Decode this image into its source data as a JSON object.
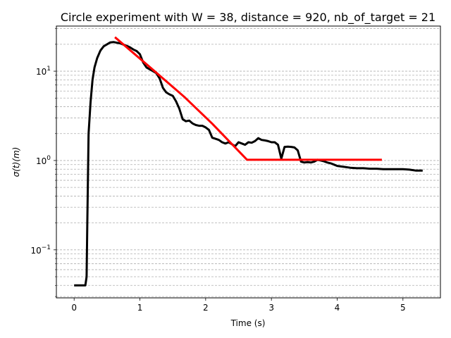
{
  "chart_data": {
    "type": "line",
    "title": "Circle experiment with W = 38, distance = 920, nb_of_target = 21",
    "xlabel": "Time (s)",
    "ylabel": "σ(t)(m)",
    "xlim": [
      -0.27,
      5.57
    ],
    "ylim": [
      0.029,
      32
    ],
    "yscale": "log",
    "grid": "y-major-and-minor-dashed",
    "x_ticks": [
      0,
      1,
      2,
      3,
      4,
      5
    ],
    "x_tick_labels": [
      "0",
      "1",
      "2",
      "3",
      "4",
      "5"
    ],
    "y_ticks": [
      0.1,
      1,
      10
    ],
    "y_tick_labels": [
      {
        "base": "10",
        "exp": "−1"
      },
      {
        "base": "10",
        "exp": "0"
      },
      {
        "base": "10",
        "exp": "1"
      }
    ],
    "series": [
      {
        "color": "#000000",
        "x": [
          0.0,
          0.17,
          0.19,
          0.2,
          0.22,
          0.25,
          0.28,
          0.31,
          0.35,
          0.4,
          0.45,
          0.5,
          0.55,
          0.6,
          0.65,
          0.7,
          0.75,
          0.8,
          0.85,
          0.9,
          0.95,
          1.0,
          1.05,
          1.1,
          1.15,
          1.2,
          1.25,
          1.3,
          1.35,
          1.4,
          1.45,
          1.5,
          1.55,
          1.6,
          1.65,
          1.7,
          1.75,
          1.8,
          1.85,
          1.9,
          1.95,
          2.0,
          2.05,
          2.1,
          2.15,
          2.2,
          2.25,
          2.3,
          2.35,
          2.4,
          2.45,
          2.5,
          2.55,
          2.6,
          2.65,
          2.7,
          2.75,
          2.8,
          2.85,
          2.9,
          2.95,
          3.0,
          3.05,
          3.1,
          3.15,
          3.2,
          3.25,
          3.3,
          3.35,
          3.4,
          3.45,
          3.5,
          3.55,
          3.6,
          3.65,
          3.7,
          3.75,
          3.8,
          3.85,
          3.9,
          3.95,
          4.0,
          4.1,
          4.2,
          4.3,
          4.4,
          4.5,
          4.6,
          4.7,
          4.8,
          4.9,
          5.0,
          5.1,
          5.2,
          5.3
        ],
        "values": [
          0.04,
          0.04,
          0.05,
          0.2,
          2.0,
          4.5,
          8.0,
          11.0,
          14.0,
          17.0,
          19.0,
          20.0,
          21.0,
          21.2,
          20.8,
          20.5,
          19.8,
          19.2,
          18.5,
          17.5,
          16.8,
          15.5,
          12.5,
          11.0,
          10.5,
          10.0,
          9.5,
          8.3,
          6.5,
          5.8,
          5.5,
          5.3,
          4.6,
          3.8,
          2.9,
          2.75,
          2.8,
          2.6,
          2.5,
          2.45,
          2.45,
          2.35,
          2.2,
          1.8,
          1.75,
          1.7,
          1.6,
          1.55,
          1.6,
          1.52,
          1.45,
          1.6,
          1.55,
          1.5,
          1.6,
          1.58,
          1.65,
          1.78,
          1.7,
          1.68,
          1.65,
          1.6,
          1.6,
          1.5,
          1.05,
          1.42,
          1.43,
          1.42,
          1.4,
          1.3,
          0.97,
          0.95,
          0.96,
          0.95,
          0.97,
          1.02,
          1.0,
          0.98,
          0.95,
          0.93,
          0.9,
          0.87,
          0.85,
          0.83,
          0.82,
          0.82,
          0.81,
          0.81,
          0.8,
          0.8,
          0.8,
          0.8,
          0.79,
          0.77,
          0.77
        ]
      },
      {
        "color": "#ff0000",
        "x": [
          0.62,
          1.17,
          1.67,
          2.1,
          2.63,
          4.68
        ],
        "values": [
          24.0,
          10.8,
          5.2,
          2.58,
          1.02,
          1.02
        ]
      }
    ]
  }
}
